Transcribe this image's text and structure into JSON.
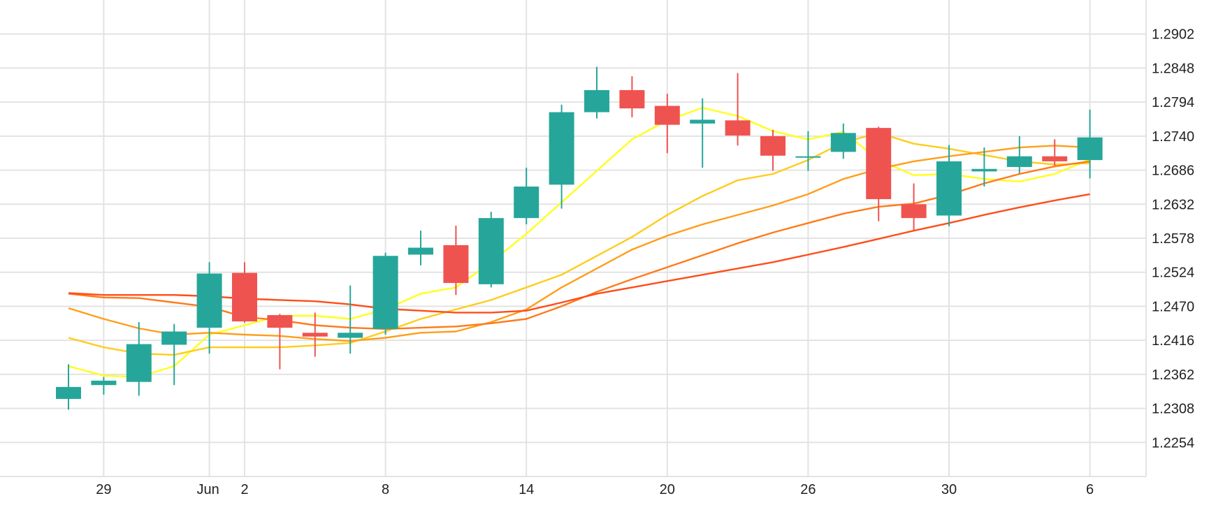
{
  "chart_data": {
    "type": "candlestick",
    "title": "",
    "xlabel": "",
    "ylabel": "",
    "ylim": [
      1.22,
      1.2956
    ],
    "grid": true,
    "y_ticks": [
      "1.2902",
      "1.2848",
      "1.2794",
      "1.2740",
      "1.2686",
      "1.2632",
      "1.2578",
      "1.2524",
      "1.2470",
      "1.2416",
      "1.2362",
      "1.2308",
      "1.2254"
    ],
    "x_ticks": [
      {
        "i": 1,
        "label": "29"
      },
      {
        "i": 4,
        "label": "Jun"
      },
      {
        "i": 5,
        "label": "2"
      },
      {
        "i": 9,
        "label": "8"
      },
      {
        "i": 13,
        "label": "14"
      },
      {
        "i": 17,
        "label": "20"
      },
      {
        "i": 21,
        "label": "26"
      },
      {
        "i": 25,
        "label": "30"
      },
      {
        "i": 29,
        "label": "6"
      }
    ],
    "up_color": "#26a69a",
    "down_color": "#ef5350",
    "candles": [
      {
        "o": 1.2323,
        "h": 1.2378,
        "l": 1.2306,
        "c": 1.2342
      },
      {
        "o": 1.2345,
        "h": 1.2358,
        "l": 1.233,
        "c": 1.2352
      },
      {
        "o": 1.235,
        "h": 1.2445,
        "l": 1.2328,
        "c": 1.241
      },
      {
        "o": 1.2409,
        "h": 1.2442,
        "l": 1.2345,
        "c": 1.243
      },
      {
        "o": 1.2436,
        "h": 1.254,
        "l": 1.2395,
        "c": 1.2522
      },
      {
        "o": 1.2523,
        "h": 1.254,
        "l": 1.2444,
        "c": 1.2446
      },
      {
        "o": 1.2456,
        "h": 1.2458,
        "l": 1.237,
        "c": 1.2436
      },
      {
        "o": 1.2428,
        "h": 1.246,
        "l": 1.239,
        "c": 1.2422
      },
      {
        "o": 1.242,
        "h": 1.2503,
        "l": 1.2395,
        "c": 1.2428
      },
      {
        "o": 1.2434,
        "h": 1.2555,
        "l": 1.2425,
        "c": 1.255
      },
      {
        "o": 1.2552,
        "h": 1.259,
        "l": 1.2535,
        "c": 1.2563
      },
      {
        "o": 1.2567,
        "h": 1.2598,
        "l": 1.2488,
        "c": 1.2507
      },
      {
        "o": 1.2505,
        "h": 1.262,
        "l": 1.25,
        "c": 1.261
      },
      {
        "o": 1.261,
        "h": 1.269,
        "l": 1.26,
        "c": 1.266
      },
      {
        "o": 1.2663,
        "h": 1.279,
        "l": 1.2625,
        "c": 1.2778
      },
      {
        "o": 1.2778,
        "h": 1.285,
        "l": 1.2768,
        "c": 1.2813
      },
      {
        "o": 1.2813,
        "h": 1.2835,
        "l": 1.277,
        "c": 1.2784
      },
      {
        "o": 1.2788,
        "h": 1.2807,
        "l": 1.2713,
        "c": 1.2758
      },
      {
        "o": 1.276,
        "h": 1.28,
        "l": 1.269,
        "c": 1.2766
      },
      {
        "o": 1.2765,
        "h": 1.284,
        "l": 1.2725,
        "c": 1.2741
      },
      {
        "o": 1.274,
        "h": 1.275,
        "l": 1.2685,
        "c": 1.2709
      },
      {
        "o": 1.2708,
        "h": 1.2748,
        "l": 1.2685,
        "c": 1.2708
      },
      {
        "o": 1.2715,
        "h": 1.276,
        "l": 1.2704,
        "c": 1.2745
      },
      {
        "o": 1.2753,
        "h": 1.2755,
        "l": 1.2605,
        "c": 1.264
      },
      {
        "o": 1.2632,
        "h": 1.2665,
        "l": 1.259,
        "c": 1.261
      },
      {
        "o": 1.2614,
        "h": 1.2726,
        "l": 1.2597,
        "c": 1.27
      },
      {
        "o": 1.2684,
        "h": 1.2722,
        "l": 1.266,
        "c": 1.2688
      },
      {
        "o": 1.2691,
        "h": 1.274,
        "l": 1.2681,
        "c": 1.2708
      },
      {
        "o": 1.2708,
        "h": 1.2735,
        "l": 1.2693,
        "c": 1.27
      },
      {
        "o": 1.2702,
        "h": 1.2782,
        "l": 1.2673,
        "c": 1.2738
      }
    ],
    "series": [
      {
        "color": "#ffff1a",
        "values": [
          1.2375,
          1.236,
          1.2358,
          1.2375,
          1.2425,
          1.244,
          1.2455,
          1.2455,
          1.245,
          1.2465,
          1.249,
          1.25,
          1.254,
          1.2585,
          1.2635,
          1.2685,
          1.2735,
          1.2765,
          1.2785,
          1.2772,
          1.2748,
          1.2735,
          1.2747,
          1.2702,
          1.2678,
          1.268,
          1.2672,
          1.2668,
          1.268,
          1.2703
        ]
      },
      {
        "color": "#ffcc1a",
        "values": [
          1.242,
          1.2405,
          1.2395,
          1.2393,
          1.2405,
          1.2405,
          1.2405,
          1.2408,
          1.2412,
          1.243,
          1.245,
          1.2465,
          1.248,
          1.25,
          1.252,
          1.255,
          1.258,
          1.2615,
          1.2645,
          1.267,
          1.268,
          1.2702,
          1.273,
          1.2745,
          1.2728,
          1.272,
          1.271,
          1.27,
          1.2695,
          1.2697
        ]
      },
      {
        "color": "#ff9e1a",
        "values": [
          1.2467,
          1.245,
          1.2435,
          1.2425,
          1.2428,
          1.2425,
          1.2423,
          1.2418,
          1.2415,
          1.242,
          1.2428,
          1.243,
          1.2445,
          1.2465,
          1.25,
          1.253,
          1.256,
          1.2582,
          1.26,
          1.2615,
          1.263,
          1.2648,
          1.2672,
          1.2688,
          1.27,
          1.2708,
          1.2715,
          1.2722,
          1.2725,
          1.2722
        ]
      },
      {
        "color": "#ff7a1a",
        "values": [
          1.249,
          1.2484,
          1.2483,
          1.2476,
          1.2469,
          1.2453,
          1.2448,
          1.244,
          1.2436,
          1.2434,
          1.2436,
          1.2438,
          1.2443,
          1.245,
          1.247,
          1.2493,
          1.2513,
          1.2532,
          1.2551,
          1.257,
          1.2587,
          1.2602,
          1.2617,
          1.2628,
          1.2633,
          1.2647,
          1.2665,
          1.268,
          1.2692,
          1.27
        ]
      },
      {
        "color": "#ff4d1a",
        "values": [
          1.2491,
          1.2488,
          1.2488,
          1.2488,
          1.2486,
          1.2482,
          1.248,
          1.2478,
          1.2473,
          1.2466,
          1.2463,
          1.246,
          1.246,
          1.2463,
          1.2476,
          1.249,
          1.25,
          1.251,
          1.252,
          1.253,
          1.254,
          1.2552,
          1.2564,
          1.2577,
          1.259,
          1.2602,
          1.2615,
          1.2627,
          1.2638,
          1.2648
        ]
      }
    ]
  }
}
